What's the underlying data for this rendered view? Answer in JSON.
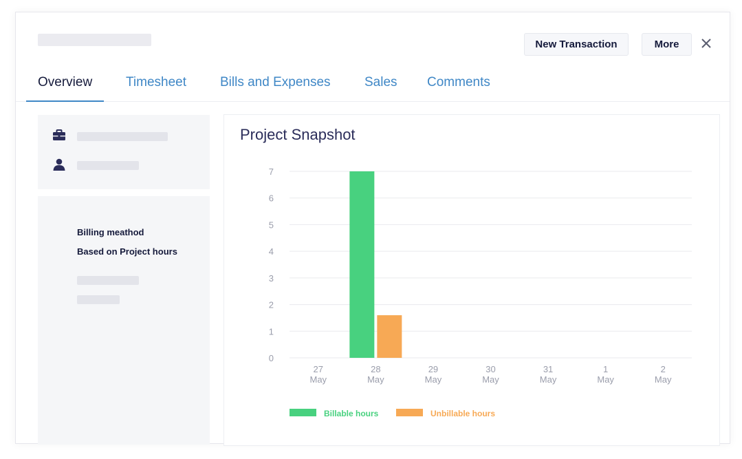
{
  "header": {
    "new_transaction_label": "New Transaction",
    "more_label": "More"
  },
  "tabs": [
    {
      "label": "Overview",
      "active": true
    },
    {
      "label": "Timesheet",
      "active": false
    },
    {
      "label": "Bills and Expenses",
      "active": false
    },
    {
      "label": "Sales",
      "active": false
    },
    {
      "label": "Comments",
      "active": false
    }
  ],
  "billing": {
    "method_label": "Billing meathod",
    "method_value": "Based on Project hours"
  },
  "snapshot": {
    "title": "Project Snapshot"
  },
  "colors": {
    "accent": "#3f87c6",
    "billable": "#48d17f",
    "unbillable": "#f7a955",
    "text_dark": "#151a3b"
  },
  "chart_data": {
    "type": "bar",
    "title": "Project Snapshot",
    "categories": [
      [
        "27",
        "May"
      ],
      [
        "28",
        "May"
      ],
      [
        "29",
        "May"
      ],
      [
        "30",
        "May"
      ],
      [
        "31",
        "May"
      ],
      [
        "1",
        "May"
      ],
      [
        "2",
        "May"
      ]
    ],
    "series": [
      {
        "name": "Billable hours",
        "color": "#48d17f",
        "values": [
          0,
          7,
          0,
          0,
          0,
          0,
          0
        ]
      },
      {
        "name": "Unbillable hours",
        "color": "#f7a955",
        "values": [
          0,
          1.6,
          0,
          0,
          0,
          0,
          0
        ]
      }
    ],
    "ylim": [
      0,
      7
    ],
    "yticks": [
      0,
      1,
      2,
      3,
      4,
      5,
      6,
      7
    ],
    "grid": true,
    "legend": "bottom-left",
    "xlabel": "",
    "ylabel": ""
  }
}
